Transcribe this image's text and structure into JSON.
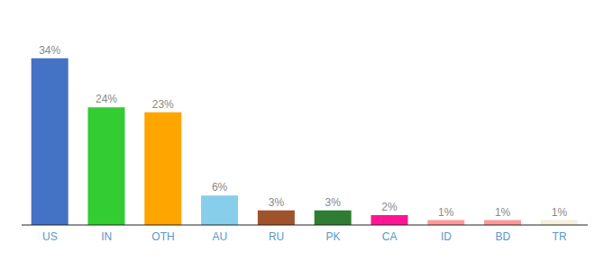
{
  "chart_data": {
    "type": "bar",
    "categories": [
      "US",
      "IN",
      "OTH",
      "AU",
      "RU",
      "PK",
      "CA",
      "ID",
      "BD",
      "TR"
    ],
    "values": [
      34,
      24,
      23,
      6,
      3,
      3,
      2,
      1,
      1,
      1
    ],
    "value_labels": [
      "34%",
      "24%",
      "23%",
      "6%",
      "3%",
      "3%",
      "2%",
      "1%",
      "1%",
      "1%"
    ],
    "data_labels": true,
    "colors": [
      "#4472C4",
      "#33CC33",
      "#FFA500",
      "#87CEEB",
      "#A0522D",
      "#2E7D32",
      "#FF1493",
      "#FF9999",
      "#FF9999",
      "#F5F0DC"
    ],
    "ylim": [
      0,
      40
    ],
    "tick_labels": "x",
    "grid": false
  }
}
